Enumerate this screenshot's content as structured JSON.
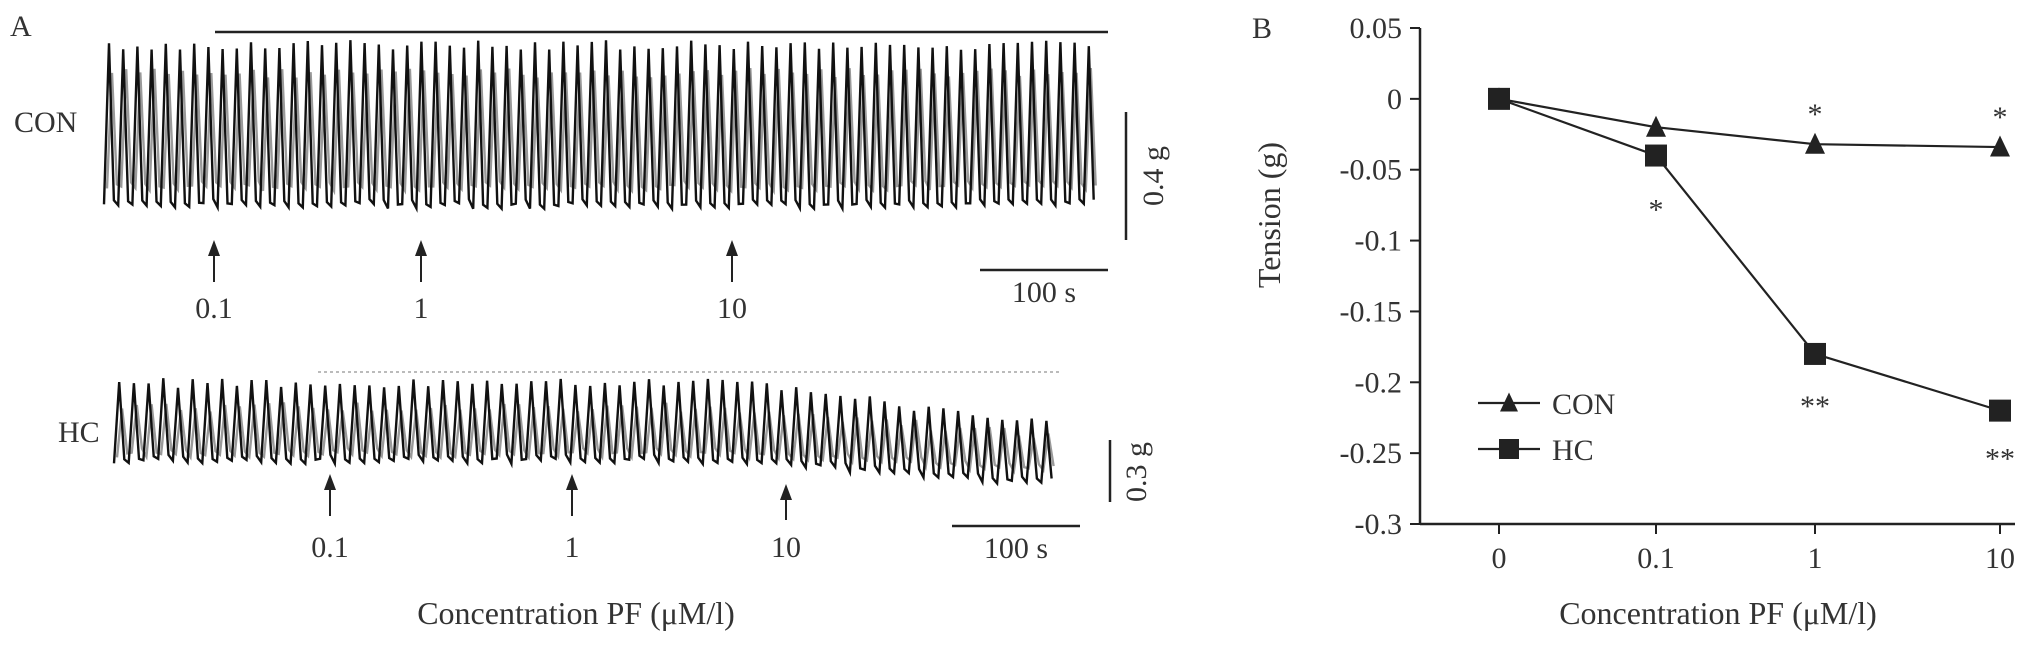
{
  "panel_a": {
    "label": "A",
    "con_label": "CON",
    "hc_label": "HC",
    "con_scale_label": "0.4 g",
    "hc_scale_label": "0.3 g",
    "time_scale_label": "100 s",
    "con_arrow_labels": [
      "0.1",
      "1",
      "10"
    ],
    "hc_arrow_labels": [
      "0.1",
      "1",
      "10"
    ],
    "xlabel": "Concentration PF (μM/l)"
  },
  "chart_data": {
    "type": "line",
    "panel_label": "B",
    "categories": [
      "0",
      "0.1",
      "1",
      "10"
    ],
    "series": [
      {
        "name": "CON",
        "marker": "triangle",
        "values": [
          0,
          -0.02,
          -0.032,
          -0.034
        ],
        "significance": [
          "",
          "",
          "*",
          "*"
        ]
      },
      {
        "name": "HC",
        "marker": "square",
        "values": [
          0,
          -0.04,
          -0.18,
          -0.22
        ],
        "significance": [
          "",
          "*",
          "**",
          "**"
        ]
      }
    ],
    "xlabel": "Concentration PF (μM/l)",
    "ylabel": "Tension (g)",
    "ylim": [
      -0.3,
      0.05
    ],
    "yticks": [
      "0.05",
      "0",
      "-0.05",
      "-0.1",
      "-0.15",
      "-0.2",
      "-0.25",
      "-0.3"
    ],
    "grid": false,
    "legend_position": "bottom-left"
  }
}
